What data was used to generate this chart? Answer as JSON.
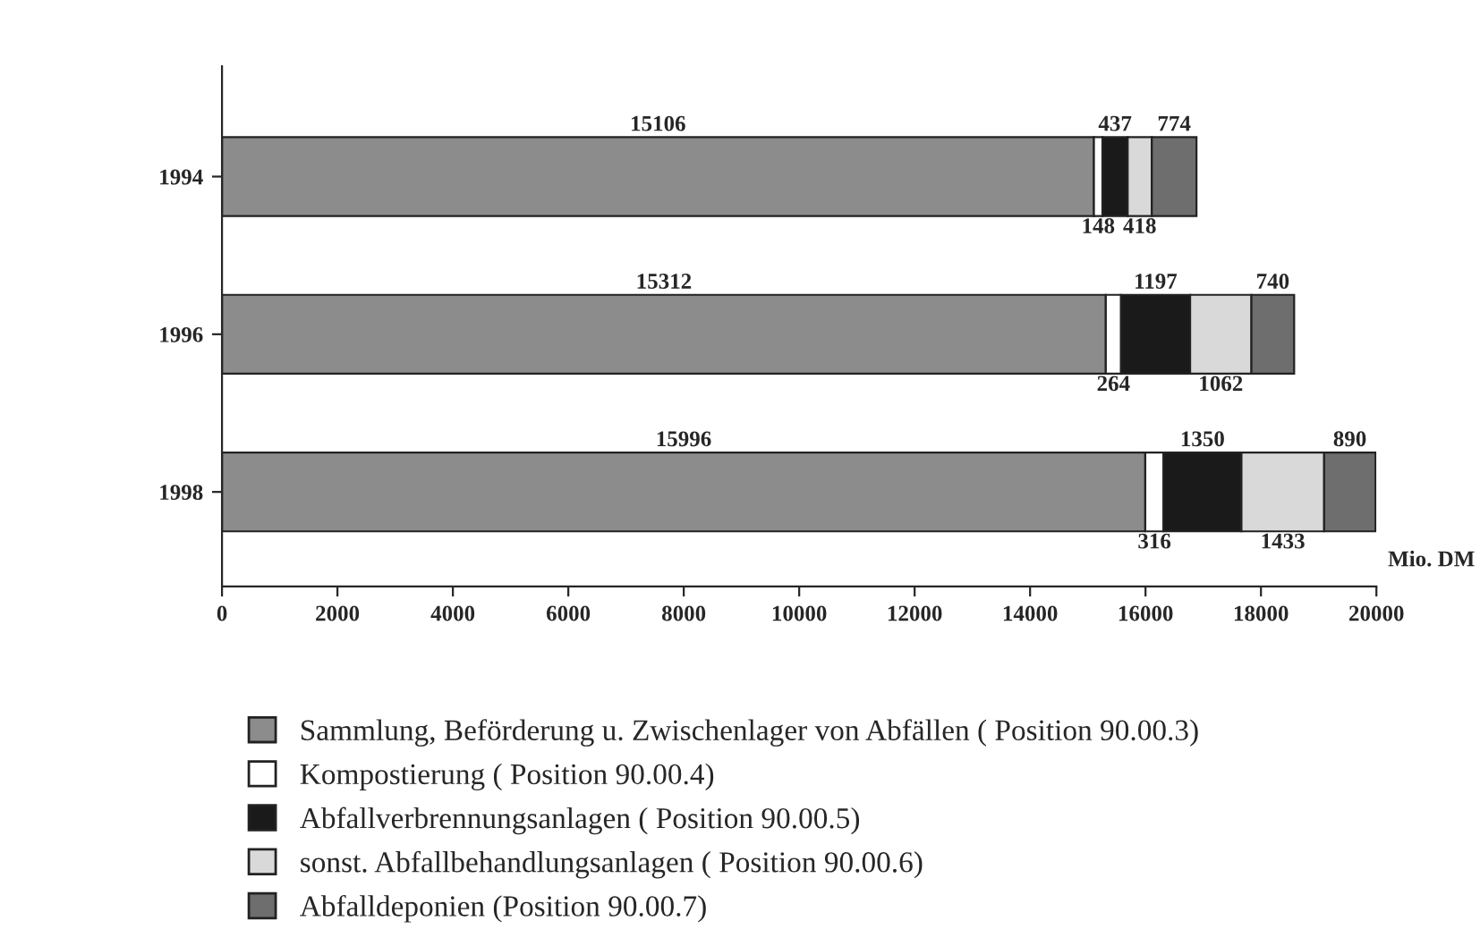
{
  "chart_data": {
    "type": "bar",
    "orientation": "horizontal",
    "stacked": true,
    "categories": [
      "1994",
      "1996",
      "1998"
    ],
    "xlabel": "Mio. DM",
    "xlim": [
      0,
      20000
    ],
    "xticks": [
      0,
      2000,
      4000,
      6000,
      8000,
      10000,
      12000,
      14000,
      16000,
      18000,
      20000
    ],
    "data_labels": true,
    "legend": "bottom",
    "grid": false,
    "series": [
      {
        "name": "Sammlung, Beförderung u. Zwischenlager von Abfällen ( Position 90.00.3)",
        "color": "#8c8c8c",
        "values": [
          15106,
          15312,
          15996
        ]
      },
      {
        "name": "Kompostierung ( Position 90.00.4)",
        "color": "#ffffff",
        "values": [
          148,
          264,
          316
        ]
      },
      {
        "name": "Abfallverbrennungsanlagen ( Position 90.00.5)",
        "color": "#1a1a1a",
        "values": [
          437,
          1197,
          1350
        ]
      },
      {
        "name": "sonst. Abfallbehandlungsanlagen ( Position 90.00.6)",
        "color": "#d9d9d9",
        "values": [
          418,
          1062,
          1433
        ]
      },
      {
        "name": "Abfalldeponien (Position 90.00.7)",
        "color": "#6e6e6e",
        "values": [
          774,
          740,
          890
        ]
      }
    ]
  }
}
